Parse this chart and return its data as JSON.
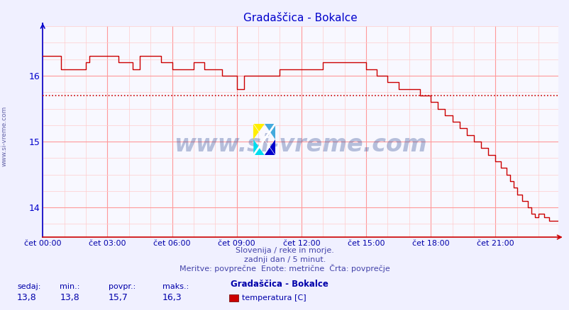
{
  "title": "Gradaščica - Bokalce",
  "title_color": "#0000cc",
  "background_color": "#f0f0ff",
  "plot_bg_color": "#f8f8ff",
  "grid_color_major": "#ff9999",
  "grid_color_minor": "#ffcccc",
  "line_color": "#cc0000",
  "avg_line_color": "#cc0000",
  "avg_value": 15.7,
  "y_min": 13.55,
  "y_max": 16.75,
  "y_ticks": [
    14,
    15,
    16
  ],
  "x_labels": [
    "čet 00:00",
    "čet 03:00",
    "čet 06:00",
    "čet 09:00",
    "čet 12:00",
    "čet 15:00",
    "čet 18:00",
    "čet 21:00"
  ],
  "x_ticks_idx": [
    0,
    36,
    72,
    108,
    144,
    180,
    216,
    252
  ],
  "total_points": 288,
  "footer_line1": "Slovenija / reke in morje.",
  "footer_line2": "zadnji dan / 5 minut.",
  "footer_line3": "Meritve: povprečne  Enote: metrične  Črta: povprečje",
  "footer_color": "#4444aa",
  "stat_labels": [
    "sedaj:",
    "min.:",
    "povpr.:",
    "maks.:"
  ],
  "stat_values": [
    "13,8",
    "13,8",
    "15,7",
    "16,3"
  ],
  "legend_title": "Gradaščica - Bokalce",
  "legend_label": "temperatura [C]",
  "legend_color": "#cc0000",
  "watermark": "www.si-vreme.com",
  "watermark_color": "#1a3a8a",
  "ylabel_text": "www.si-vreme.com",
  "ylabel_color": "#6666aa",
  "left_spine_color": "#0000cc",
  "bottom_spine_color": "#cc0000"
}
